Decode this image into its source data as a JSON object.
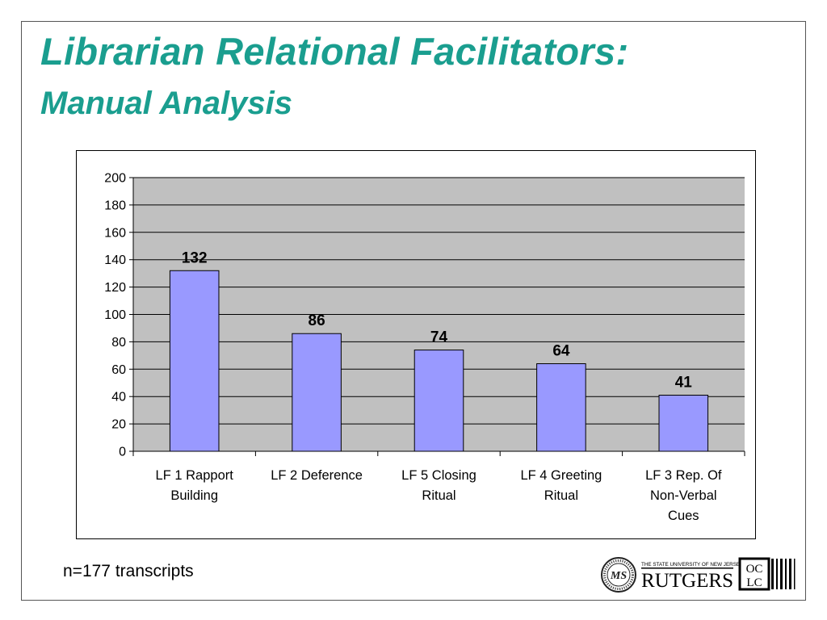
{
  "slide": {
    "title_line1": "Librarian Relational Facilitators:",
    "title_line2": "Manual Analysis",
    "footnote": "n=177 transcripts",
    "logos": {
      "seal_icon": "seal-logo",
      "rutgers_small": "THE STATE UNIVERSITY OF NEW JERSEY",
      "rutgers": "RUTGERS",
      "oclc": [
        "OC",
        "LC"
      ]
    },
    "colors": {
      "title": "#1a9e8f",
      "plot_bg": "#c0c0c0",
      "bar_fill": "#9999ff",
      "bar_stroke": "#000000"
    }
  },
  "chart_data": {
    "type": "bar",
    "categories": [
      [
        "LF 1 Rapport",
        "Building"
      ],
      [
        "LF 2 Deference"
      ],
      [
        "LF 5 Closing",
        "Ritual"
      ],
      [
        "LF 4 Greeting",
        "Ritual"
      ],
      [
        "LF 3 Rep. Of",
        "Non-Verbal",
        "Cues"
      ]
    ],
    "values": [
      132,
      86,
      74,
      64,
      41
    ],
    "data_labels": [
      "132",
      "86",
      "74",
      "64",
      "41"
    ],
    "ylim": [
      0,
      200
    ],
    "yticks": [
      0,
      20,
      40,
      60,
      80,
      100,
      120,
      140,
      160,
      180,
      200
    ],
    "grid": true,
    "legend": "none",
    "title": "",
    "xlabel": "",
    "ylabel": ""
  }
}
